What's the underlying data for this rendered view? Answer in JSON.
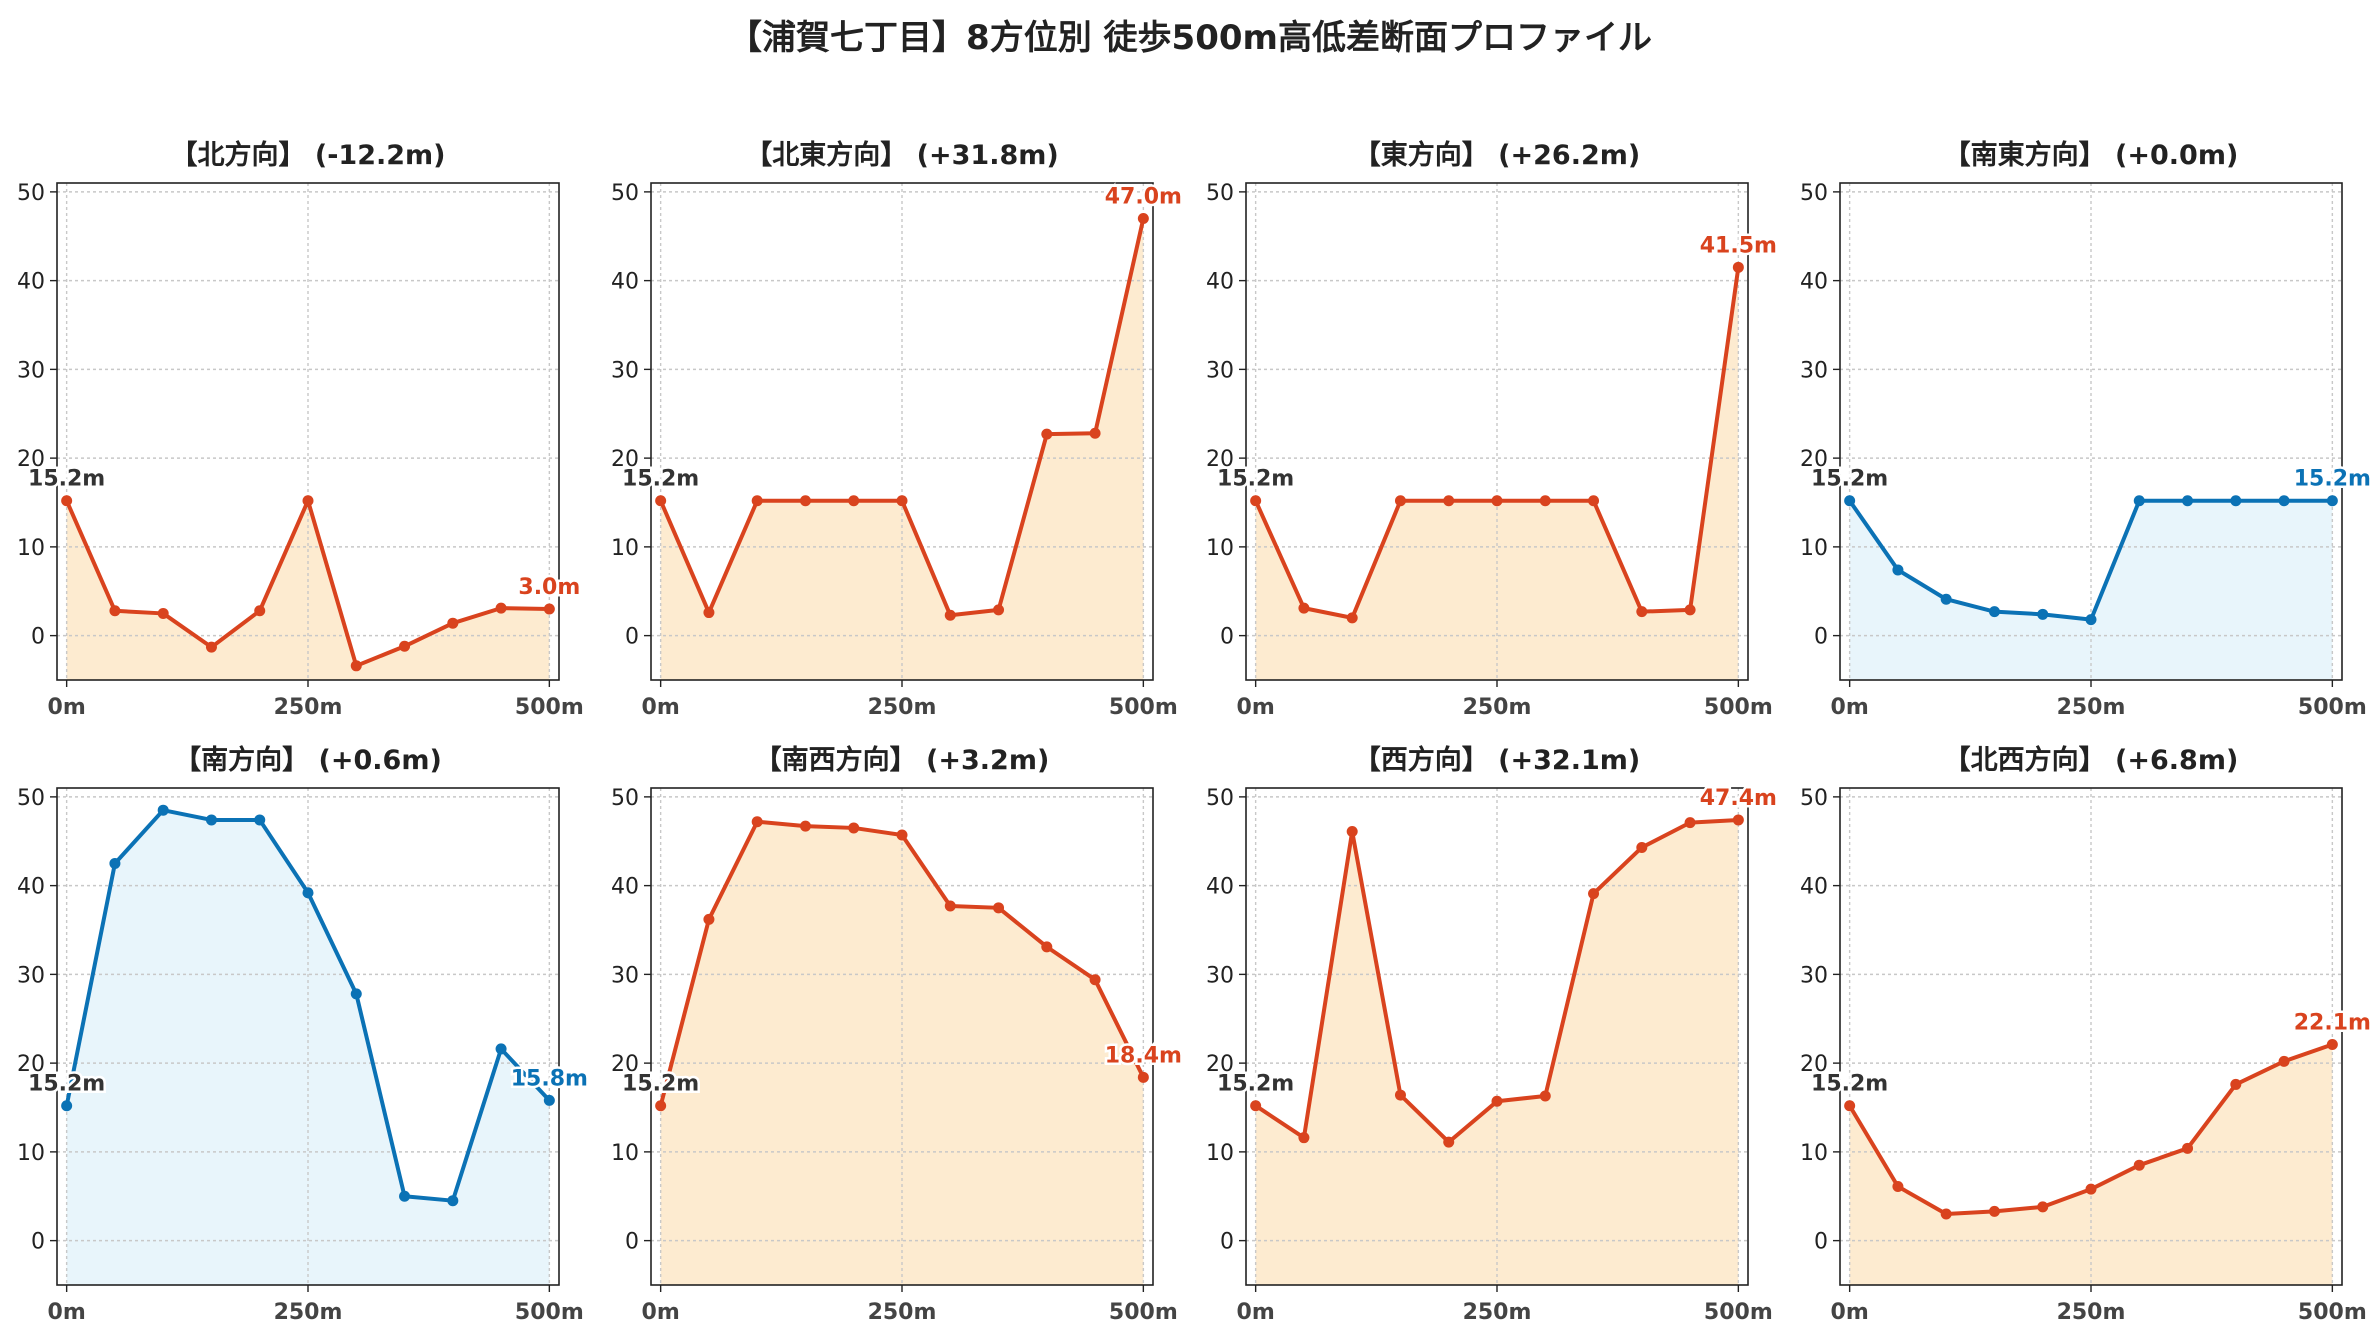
{
  "title": "【浦賀七丁目】8方位別 徒歩500m高低差断面プロファイル",
  "colors": {
    "up_line": "#d9431e",
    "up_fill": "#fdebd0",
    "down_line": "#0b72b5",
    "down_fill": "#e8f5fb",
    "start_label": "#333333"
  },
  "chart_data": [
    {
      "type": "area",
      "title": "【北方向】 (-12.2m)",
      "style": "up",
      "x": [
        0,
        50,
        100,
        150,
        200,
        250,
        300,
        350,
        400,
        450,
        500
      ],
      "y": [
        15.2,
        2.8,
        2.5,
        -1.3,
        2.8,
        15.2,
        -3.4,
        -1.2,
        1.4,
        3.1,
        3.0
      ],
      "xticks": [
        "0m",
        "250m",
        "500m"
      ],
      "yticks": [
        0,
        10,
        20,
        30,
        40,
        50
      ],
      "ylim": [
        -5,
        51
      ],
      "xlim": [
        -10,
        510
      ],
      "grid": true,
      "start_label": "15.2m",
      "end_label": "3.0m"
    },
    {
      "type": "area",
      "title": "【北東方向】 (+31.8m)",
      "style": "up",
      "x": [
        0,
        50,
        100,
        150,
        200,
        250,
        300,
        350,
        400,
        450,
        500
      ],
      "y": [
        15.2,
        2.6,
        15.2,
        15.2,
        15.2,
        15.2,
        2.3,
        2.9,
        22.7,
        22.8,
        47.0
      ],
      "xticks": [
        "0m",
        "250m",
        "500m"
      ],
      "yticks": [
        0,
        10,
        20,
        30,
        40,
        50
      ],
      "ylim": [
        -5,
        51
      ],
      "xlim": [
        -10,
        510
      ],
      "grid": true,
      "start_label": "15.2m",
      "end_label": "47.0m"
    },
    {
      "type": "area",
      "title": "【東方向】 (+26.2m)",
      "style": "up",
      "x": [
        0,
        50,
        100,
        150,
        200,
        250,
        300,
        350,
        400,
        450,
        500
      ],
      "y": [
        15.2,
        3.1,
        2.0,
        15.2,
        15.2,
        15.2,
        15.2,
        15.2,
        2.7,
        2.9,
        41.5
      ],
      "xticks": [
        "0m",
        "250m",
        "500m"
      ],
      "yticks": [
        0,
        10,
        20,
        30,
        40,
        50
      ],
      "ylim": [
        -5,
        51
      ],
      "xlim": [
        -10,
        510
      ],
      "grid": true,
      "start_label": "15.2m",
      "end_label": "41.5m"
    },
    {
      "type": "area",
      "title": "【南東方向】 (+0.0m)",
      "style": "down",
      "x": [
        0,
        50,
        100,
        150,
        200,
        250,
        300,
        350,
        400,
        450,
        500
      ],
      "y": [
        15.2,
        7.4,
        4.1,
        2.7,
        2.4,
        1.8,
        15.2,
        15.2,
        15.2,
        15.2,
        15.2
      ],
      "xticks": [
        "0m",
        "250m",
        "500m"
      ],
      "yticks": [
        0,
        10,
        20,
        30,
        40,
        50
      ],
      "ylim": [
        -5,
        51
      ],
      "xlim": [
        -10,
        510
      ],
      "grid": true,
      "start_label": "15.2m",
      "end_label": "15.2m"
    },
    {
      "type": "area",
      "title": "【南方向】 (+0.6m)",
      "style": "down",
      "x": [
        0,
        50,
        100,
        150,
        200,
        250,
        300,
        350,
        400,
        450,
        500
      ],
      "y": [
        15.2,
        42.5,
        48.5,
        47.4,
        47.4,
        39.2,
        27.8,
        5.0,
        4.5,
        21.6,
        15.8
      ],
      "xticks": [
        "0m",
        "250m",
        "500m"
      ],
      "yticks": [
        0,
        10,
        20,
        30,
        40,
        50
      ],
      "ylim": [
        -5,
        51
      ],
      "xlim": [
        -10,
        510
      ],
      "grid": true,
      "start_label": "15.2m",
      "end_label": "15.8m"
    },
    {
      "type": "area",
      "title": "【南西方向】 (+3.2m)",
      "style": "up",
      "x": [
        0,
        50,
        100,
        150,
        200,
        250,
        300,
        350,
        400,
        450,
        500
      ],
      "y": [
        15.2,
        36.2,
        47.2,
        46.7,
        46.5,
        45.7,
        37.7,
        37.5,
        33.1,
        29.4,
        18.4
      ],
      "xticks": [
        "0m",
        "250m",
        "500m"
      ],
      "yticks": [
        0,
        10,
        20,
        30,
        40,
        50
      ],
      "ylim": [
        -5,
        51
      ],
      "xlim": [
        -10,
        510
      ],
      "grid": true,
      "start_label": "15.2m",
      "end_label": "18.4m"
    },
    {
      "type": "area",
      "title": "【西方向】 (+32.1m)",
      "style": "up",
      "x": [
        0,
        50,
        100,
        150,
        200,
        250,
        300,
        350,
        400,
        450,
        500
      ],
      "y": [
        15.2,
        11.6,
        46.1,
        16.4,
        11.1,
        15.7,
        16.3,
        39.1,
        44.3,
        47.1,
        47.4
      ],
      "xticks": [
        "0m",
        "250m",
        "500m"
      ],
      "yticks": [
        0,
        10,
        20,
        30,
        40,
        50
      ],
      "ylim": [
        -5,
        51
      ],
      "xlim": [
        -10,
        510
      ],
      "grid": true,
      "start_label": "15.2m",
      "end_label": "47.4m"
    },
    {
      "type": "area",
      "title": "【北西方向】 (+6.8m)",
      "style": "up",
      "x": [
        0,
        50,
        100,
        150,
        200,
        250,
        300,
        350,
        400,
        450,
        500
      ],
      "y": [
        15.2,
        6.1,
        3.0,
        3.3,
        3.8,
        5.8,
        8.5,
        10.4,
        17.6,
        20.2,
        22.1
      ],
      "xticks": [
        "0m",
        "250m",
        "500m"
      ],
      "yticks": [
        0,
        10,
        20,
        30,
        40,
        50
      ],
      "ylim": [
        -5,
        51
      ],
      "xlim": [
        -10,
        510
      ],
      "grid": true,
      "start_label": "15.2m",
      "end_label": "22.1m"
    }
  ]
}
